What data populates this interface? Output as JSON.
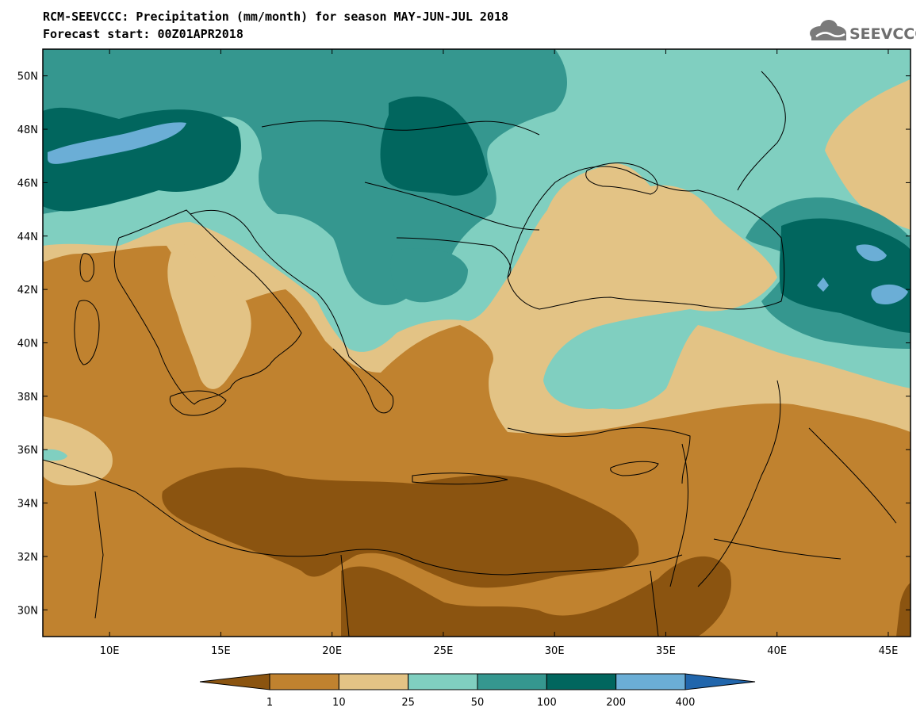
{
  "header": {
    "title_line1": "RCM-SEEVCCC: Precipitation (mm/month) for season MAY-JUN-JUL 2018",
    "title_line2": "Forecast start: 00Z01APR2018",
    "logo_text": "SEEVCCC"
  },
  "map": {
    "lon_range": [
      7,
      46
    ],
    "lat_range": [
      29,
      51
    ],
    "lat_labels": [
      "50N",
      "48N",
      "46N",
      "44N",
      "42N",
      "40N",
      "38N",
      "36N",
      "34N",
      "32N",
      "30N"
    ],
    "lon_labels": [
      "10E",
      "15E",
      "20E",
      "25E",
      "30E",
      "35E",
      "40E",
      "45E"
    ]
  },
  "legend": {
    "thresholds": [
      "1",
      "10",
      "25",
      "50",
      "100",
      "200",
      "400"
    ],
    "colors": [
      "#8b5410",
      "#c0822f",
      "#e3c385",
      "#80cfc0",
      "#35978f",
      "#01665e",
      "#6baed6",
      "#2166ac"
    ]
  }
}
